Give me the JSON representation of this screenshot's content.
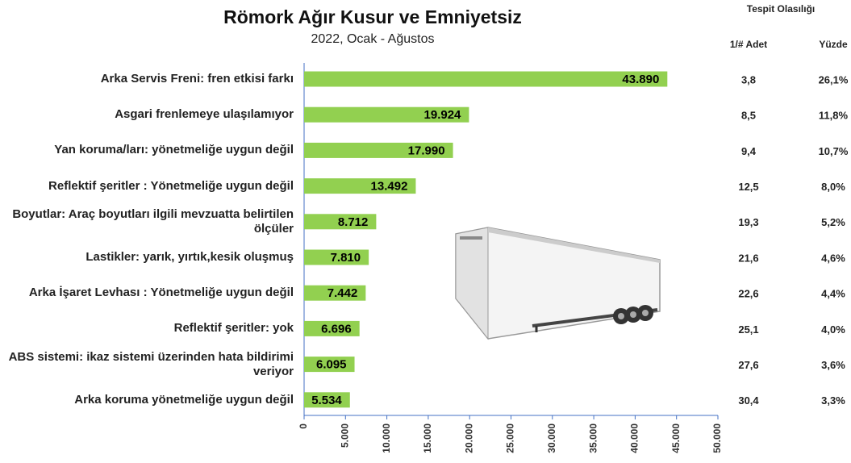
{
  "chart_data": {
    "type": "bar",
    "orientation": "horizontal",
    "title": "Römork Ağır Kusur ve Emniyetsiz",
    "subtitle": "2022, Ocak - Ağustos",
    "categories": [
      "Arka Servis Freni: fren etkisi farkı",
      "Asgari frenlemeye ulaşılamıyor",
      "Yan koruma/ları: yönetmeliğe uygun değil",
      "Reflektif şeritler : Yönetmeliğe uygun değil",
      "Boyutlar: Araç boyutları ilgili mevzuatta belirtilen ölçüler",
      "Lastikler: yarık, yırtık,kesik oluşmuş",
      "Arka İşaret Levhası : Yönetmeliğe uygun değil",
      "Reflektif şeritler: yok",
      "ABS sistemi: ikaz sistemi üzerinden hata bildirimi veriyor",
      "Arka koruma yönetmeliğe uygun değil"
    ],
    "values": [
      43890,
      19924,
      17990,
      13492,
      8712,
      7810,
      7442,
      6696,
      6095,
      5534
    ],
    "value_labels": [
      "43.890",
      "19.924",
      "17.990",
      "13.492",
      "8.712",
      "7.810",
      "7.442",
      "6.696",
      "6.095",
      "5.534"
    ],
    "color": "#92d050",
    "xlim": [
      0,
      50000
    ],
    "xticks": [
      0,
      {
        "value": 5000,
        "label": "5.000"
      },
      {
        "value": 10000,
        "label": "10.000"
      },
      {
        "value": 15000,
        "label": "15.000"
      },
      {
        "value": 20000,
        "label": "20.000"
      },
      {
        "value": 25000,
        "label": "25.000"
      },
      {
        "value": 30000,
        "label": "30.000"
      },
      {
        "value": 35000,
        "label": "35.000"
      },
      {
        "value": 40000,
        "label": "40.000"
      },
      {
        "value": 45000,
        "label": "45.000"
      },
      {
        "value": 50000,
        "label": "50.000"
      }
    ]
  },
  "table": {
    "title": "Tespit Olasılığı",
    "columns": [
      "1/# Adet",
      "Yüzde"
    ],
    "rows": [
      [
        "3,8",
        "26,1%"
      ],
      [
        "8,5",
        "11,8%"
      ],
      [
        "9,4",
        "10,7%"
      ],
      [
        "12,5",
        "8,0%"
      ],
      [
        "19,3",
        "5,2%"
      ],
      [
        "21,6",
        "4,6%"
      ],
      [
        "22,6",
        "4,4%"
      ],
      [
        "25,1",
        "4,0%"
      ],
      [
        "27,6",
        "3,6%"
      ],
      [
        "30,4",
        "3,3%"
      ]
    ]
  }
}
